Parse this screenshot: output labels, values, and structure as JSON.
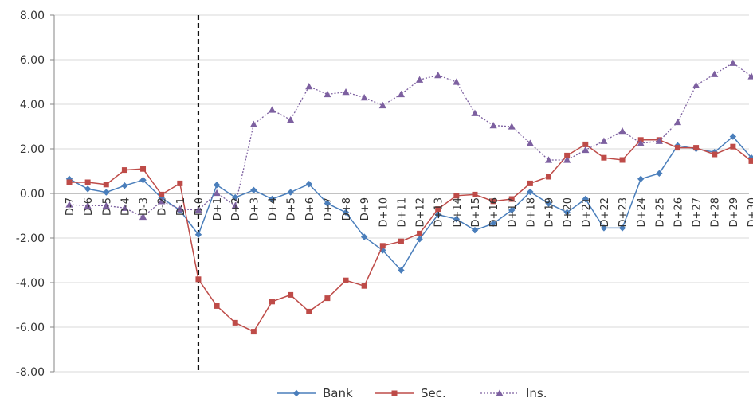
{
  "chart_data": {
    "type": "line",
    "title": "",
    "xlabel": "",
    "ylabel": "",
    "ylim": [
      -8,
      8
    ],
    "y_ticks": [
      8,
      6,
      4,
      2,
      0,
      -2,
      -4,
      -6,
      -8
    ],
    "y_tick_labels": [
      "8.00",
      "6.00",
      "4.00",
      "2.00",
      "0.00",
      "-2.00",
      "-4.00",
      "-6.00",
      "-8.00"
    ],
    "grid": true,
    "legend_position": "bottom",
    "event_marker_category": "D-0",
    "event_marker_style": "dashed vertical line",
    "categories": [
      "D-7",
      "D-6",
      "D-5",
      "D-4",
      "D-3",
      "D-2",
      "D-1",
      "D-0",
      "D+1",
      "D+2",
      "D+3",
      "D+4",
      "D+5",
      "D+6",
      "D+7",
      "D+8",
      "D+9",
      "D+10",
      "D+11",
      "D+12",
      "D+13",
      "D+14",
      "D+15",
      "D+16",
      "D+17",
      "D+18",
      "D+19",
      "D+20",
      "D+21",
      "D+22",
      "D+23",
      "D+24",
      "D+25",
      "D+26",
      "D+27",
      "D+28",
      "D+29",
      "D+30"
    ],
    "series": [
      {
        "name": "Bank",
        "color": "#4a7ebb",
        "marker": "diamond",
        "line": "solid",
        "values": [
          0.65,
          0.2,
          0.05,
          0.35,
          0.6,
          -0.2,
          -0.75,
          -1.85,
          0.38,
          -0.18,
          0.15,
          -0.25,
          0.05,
          0.42,
          -0.45,
          -0.85,
          -1.95,
          -2.55,
          -3.45,
          -2.05,
          -0.95,
          -1.15,
          -1.65,
          -1.35,
          -0.75,
          0.07,
          -0.45,
          -0.85,
          -0.25,
          -1.55,
          -1.55,
          0.65,
          0.9,
          2.15,
          2.0,
          1.85,
          2.55,
          1.6
        ]
      },
      {
        "name": "Sec.",
        "color": "#be4b48",
        "marker": "square",
        "line": "solid",
        "values": [
          0.5,
          0.5,
          0.4,
          1.05,
          1.1,
          -0.05,
          0.45,
          -3.85,
          -5.05,
          -5.8,
          -6.2,
          -4.85,
          -4.55,
          -5.3,
          -4.7,
          -3.9,
          -4.15,
          -2.35,
          -2.15,
          -1.8,
          -0.7,
          -0.1,
          -0.05,
          -0.35,
          -0.25,
          0.45,
          0.75,
          1.7,
          2.2,
          1.6,
          1.5,
          2.4,
          2.4,
          2.05,
          2.05,
          1.75,
          2.1,
          1.45
        ]
      },
      {
        "name": "Ins.",
        "color": "#7d60a0",
        "marker": "triangle",
        "line": "dotted",
        "values": [
          -0.5,
          -0.55,
          -0.55,
          -0.65,
          -1.05,
          -0.35,
          -0.7,
          -0.75,
          0.02,
          -0.55,
          3.1,
          3.75,
          3.3,
          4.8,
          4.45,
          4.55,
          4.3,
          3.95,
          4.45,
          5.1,
          5.3,
          5.0,
          3.6,
          3.05,
          3.0,
          2.25,
          1.5,
          1.5,
          1.95,
          2.35,
          2.8,
          2.25,
          2.35,
          3.2,
          4.85,
          5.35,
          5.85,
          5.25
        ]
      }
    ]
  }
}
